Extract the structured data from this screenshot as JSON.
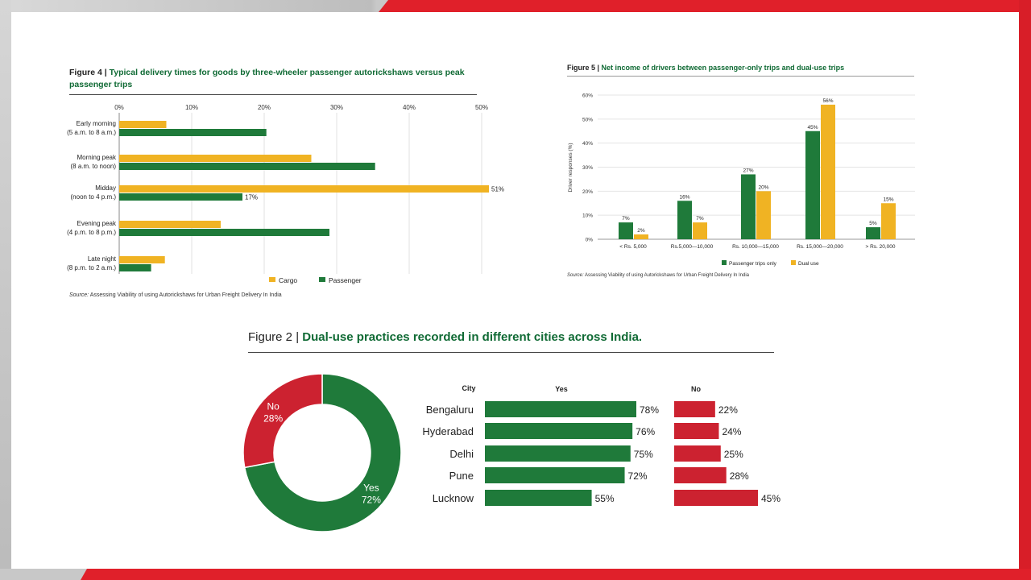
{
  "colors": {
    "cargo": "#f0b323",
    "passenger": "#1f7a3a",
    "yes": "#1f7a3a",
    "no": "#cc2230",
    "title_green": "#0f6a34"
  },
  "figure4": {
    "number": "Figure 4 |",
    "title": "Typical delivery times for goods by three-wheeler passenger autorickshaws versus peak passenger trips",
    "source_label": "Source:",
    "source_text": "Assessing Viability of using Autorickshaws for Urban Freight Delivery In India"
  },
  "figure5": {
    "number": "Figure 5 |",
    "title": "Net income of drivers between passenger-only trips and dual-use trips",
    "source_label": "Source:",
    "source_text": "Assessing Viability of using Autorickshaws for Urban Freight Delivery In India"
  },
  "figure2": {
    "number": "Figure 2 |",
    "title": "Dual-use practices recorded in different cities across India."
  },
  "chart_data": [
    {
      "id": "fig4",
      "type": "bar",
      "orientation": "horizontal",
      "title": "Typical delivery times for goods by three-wheeler passenger autorickshaws versus peak passenger trips",
      "categories": [
        [
          "Early morning",
          "(5 a.m. to 8 a.m.)"
        ],
        [
          "Morning peak",
          "(8 a.m. to noon)"
        ],
        [
          "Midday",
          "(noon to 4 p.m.)"
        ],
        [
          "Evening peak",
          "(4 p.m. to 8 p.m.)"
        ],
        [
          "Late night",
          "(8 p.m. to 2 a.m.)"
        ]
      ],
      "series": [
        {
          "name": "Cargo",
          "values": [
            6.5,
            26.5,
            51,
            14,
            6.3
          ],
          "labels": [
            "",
            "",
            "51%",
            "",
            ""
          ]
        },
        {
          "name": "Passenger",
          "values": [
            20.3,
            35.3,
            17,
            29,
            4.4
          ],
          "labels": [
            "",
            "",
            "17%",
            "",
            ""
          ]
        }
      ],
      "xlim": [
        0,
        50
      ],
      "ticks": [
        0,
        10,
        20,
        30,
        40,
        50
      ],
      "tick_labels": [
        "0%",
        "10%",
        "20%",
        "30%",
        "40%",
        "50%"
      ],
      "grid": true,
      "legend": "bottom"
    },
    {
      "id": "fig5",
      "type": "bar",
      "orientation": "vertical",
      "title": "Net income of drivers between passenger-only trips and dual-use trips",
      "categories": [
        "< Rs. 5,000",
        "Rs.5,000—10,000",
        "Rs. 10,000—15,000",
        "Rs. 15,000—20,000",
        "> Rs. 20,000"
      ],
      "series": [
        {
          "name": "Passenger trips only",
          "values": [
            7,
            16,
            27,
            45,
            5
          ],
          "labels": [
            "7%",
            "16%",
            "27%",
            "45%",
            "5%"
          ]
        },
        {
          "name": "Dual use",
          "values": [
            2,
            7,
            20,
            56,
            15
          ],
          "labels": [
            "2%",
            "7%",
            "20%",
            "56%",
            "15%"
          ]
        }
      ],
      "ylabel": "Driver responses (%)",
      "ylim": [
        0,
        60
      ],
      "ticks": [
        0,
        10,
        20,
        30,
        40,
        50,
        60
      ],
      "tick_labels": [
        "0%",
        "10%",
        "20%",
        "30%",
        "40%",
        "50%",
        "60%"
      ],
      "grid": true,
      "legend": "bottom"
    },
    {
      "id": "fig2_donut",
      "type": "pie",
      "style": "donut",
      "slices": [
        {
          "name": "Yes",
          "value": 72,
          "label": "72%"
        },
        {
          "name": "No",
          "value": 28,
          "label": "28%"
        }
      ]
    },
    {
      "id": "fig2_cities",
      "type": "bar",
      "orientation": "horizontal",
      "category_header": "City",
      "categories": [
        "Bengaluru",
        "Hyderabad",
        "Delhi",
        "Pune",
        "Lucknow"
      ],
      "series": [
        {
          "name": "Yes",
          "values": [
            78,
            76,
            75,
            72,
            55
          ],
          "labels": [
            "78%",
            "76%",
            "75%",
            "72%",
            "55%"
          ]
        },
        {
          "name": "No",
          "values": [
            22,
            24,
            25,
            28,
            45
          ],
          "labels": [
            "22%",
            "24%",
            "25%",
            "28%",
            "45%"
          ]
        }
      ]
    }
  ]
}
